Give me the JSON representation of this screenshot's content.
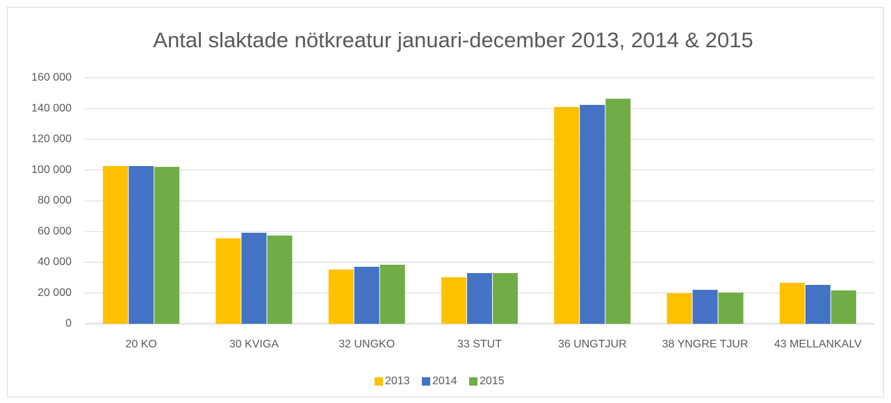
{
  "chart_data": {
    "type": "bar",
    "title": "Antal slaktade nötkreatur januari-december 2013, 2014 & 2015",
    "categories": [
      "20 KO",
      "30 KVIGA",
      "32 UNGKO",
      "33 STUT",
      "36 UNGTJUR",
      "38 YNGRE TJUR",
      "43 MELLANKALV"
    ],
    "series": [
      {
        "name": "2013",
        "color": "#ffc000",
        "values": [
          102600,
          55600,
          35300,
          30300,
          141000,
          19900,
          26700
        ]
      },
      {
        "name": "2014",
        "color": "#4472c4",
        "values": [
          102600,
          59200,
          37100,
          33000,
          142400,
          22100,
          25300
        ]
      },
      {
        "name": "2015",
        "color": "#70ad47",
        "values": [
          102100,
          57400,
          38400,
          33000,
          146400,
          20300,
          21700
        ]
      }
    ],
    "ylim": [
      0,
      160000
    ],
    "yticks": [
      0,
      {
        "value": 20000,
        "label": "20 000"
      },
      {
        "value": 40000,
        "label": "40 000"
      },
      {
        "value": 60000,
        "label": "60 000"
      },
      {
        "value": 80000,
        "label": "80 000"
      },
      {
        "value": 100000,
        "label": "100 000"
      },
      {
        "value": 120000,
        "label": "120 000"
      },
      {
        "value": 140000,
        "label": "140 000"
      },
      {
        "value": 160000,
        "label": "160 000"
      }
    ],
    "grid": true,
    "legend": "bottom"
  }
}
